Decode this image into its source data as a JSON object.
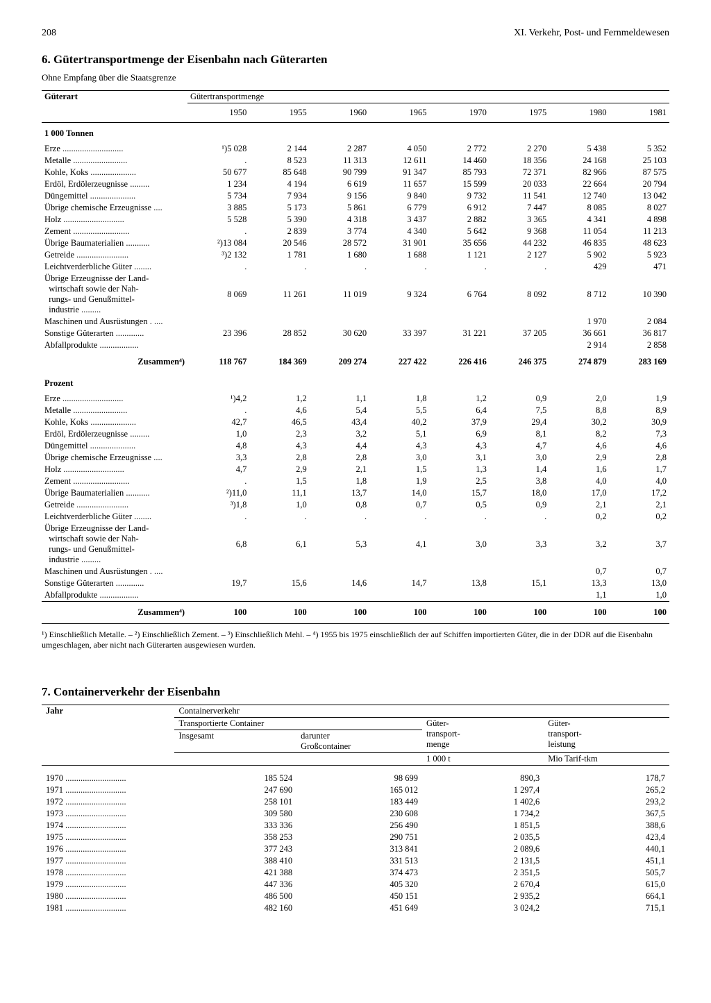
{
  "page_number": "208",
  "chapter_title": "XI. Verkehr, Post- und Fernmeldewesen",
  "section6": {
    "heading": "6. Gütertransportmenge der Eisenbahn nach Güterarten",
    "subtitle": "Ohne Empfang über die Staatsgrenze",
    "col_label": "Güterart",
    "group_label": "Gütertransportmenge",
    "years": [
      "1950",
      "1955",
      "1960",
      "1965",
      "1970",
      "1975",
      "1980",
      "1981"
    ],
    "unit1": "1 000 Tonnen",
    "unit2": "Prozent",
    "rows_t": [
      {
        "l": "Erze",
        "v": [
          "¹)5 028",
          "2 144",
          "2 287",
          "4 050",
          "2 772",
          "2 270",
          "5 438",
          "5 352"
        ]
      },
      {
        "l": "Metalle",
        "v": [
          ".",
          "8 523",
          "11 313",
          "12 611",
          "14 460",
          "18 356",
          "24 168",
          "25 103"
        ]
      },
      {
        "l": "Kohle, Koks",
        "v": [
          "50 677",
          "85 648",
          "90 799",
          "91 347",
          "85 793",
          "72 371",
          "82 966",
          "87 575"
        ]
      },
      {
        "l": "Erdöl, Erdölerzeugnisse",
        "v": [
          "1 234",
          "4 194",
          "6 619",
          "11 657",
          "15 599",
          "20 033",
          "22 664",
          "20 794"
        ]
      },
      {
        "l": "Düngemittel",
        "v": [
          "5 734",
          "7 934",
          "9 156",
          "9 840",
          "9 732",
          "11 541",
          "12 740",
          "13 042"
        ]
      },
      {
        "l": "Übrige chemische Erzeugnisse",
        "v": [
          "3 885",
          "5 173",
          "5 861",
          "6 779",
          "6 912",
          "7 447",
          "8 085",
          "8 027"
        ]
      },
      {
        "l": "Holz",
        "v": [
          "5 528",
          "5 390",
          "4 318",
          "3 437",
          "2 882",
          "3 365",
          "4 341",
          "4 898"
        ]
      },
      {
        "l": "Zement",
        "v": [
          ".",
          "2 839",
          "3 774",
          "4 340",
          "5 642",
          "9 368",
          "11 054",
          "11 213"
        ]
      },
      {
        "l": "Übrige Baumaterialien",
        "v": [
          "²)13 084",
          "20 546",
          "28 572",
          "31 901",
          "35 656",
          "44 232",
          "46 835",
          "48 623"
        ]
      },
      {
        "l": "Getreide",
        "v": [
          "³)2 132",
          "1 781",
          "1 680",
          "1 688",
          "1 121",
          "2 127",
          "5 902",
          "5 923"
        ]
      },
      {
        "l": "Leichtverderbliche Güter",
        "v": [
          ".",
          ".",
          ".",
          ".",
          ".",
          ".",
          "429",
          "471"
        ]
      }
    ],
    "row_agri": {
      "l": "Übrige Erzeugnisse der Land-<br>&nbsp;&nbsp;wirtschaft sowie der Nah-<br>&nbsp;&nbsp;rungs- und Genußmittel-<br>&nbsp;&nbsp;industrie",
      "v": [
        "8 069",
        "11 261",
        "11 019",
        "9 324",
        "6 764",
        "8 092",
        "8 712",
        "10 390"
      ]
    },
    "rows_t2": [
      {
        "l": "Maschinen und Ausrüstungen .",
        "v": [
          "",
          "",
          "",
          "",
          "",
          "",
          "1 970",
          "2 084"
        ]
      },
      {
        "l": "Sonstige Güterarten",
        "v": [
          "23 396",
          "28 852",
          "30 620",
          "33 397",
          "31 221",
          "37 205",
          "36 661",
          "36 817"
        ],
        "brace": true
      },
      {
        "l": "Abfallprodukte",
        "v": [
          "",
          "",
          "",
          "",
          "",
          "",
          "2 914",
          "2 858"
        ]
      }
    ],
    "sum_t": {
      "l": "Zusammen⁴)",
      "v": [
        "118 767",
        "184 369",
        "209 274",
        "227 422",
        "226 416",
        "246 375",
        "274 879",
        "283 169"
      ]
    },
    "rows_p": [
      {
        "l": "Erze",
        "v": [
          "¹)4,2",
          "1,2",
          "1,1",
          "1,8",
          "1,2",
          "0,9",
          "2,0",
          "1,9"
        ]
      },
      {
        "l": "Metalle",
        "v": [
          ".",
          "4,6",
          "5,4",
          "5,5",
          "6,4",
          "7,5",
          "8,8",
          "8,9"
        ]
      },
      {
        "l": "Kohle, Koks",
        "v": [
          "42,7",
          "46,5",
          "43,4",
          "40,2",
          "37,9",
          "29,4",
          "30,2",
          "30,9"
        ]
      },
      {
        "l": "Erdöl, Erdölerzeugnisse",
        "v": [
          "1,0",
          "2,3",
          "3,2",
          "5,1",
          "6,9",
          "8,1",
          "8,2",
          "7,3"
        ]
      },
      {
        "l": "Düngemittel",
        "v": [
          "4,8",
          "4,3",
          "4,4",
          "4,3",
          "4,3",
          "4,7",
          "4,6",
          "4,6"
        ]
      },
      {
        "l": "Übrige chemische Erzeugnisse",
        "v": [
          "3,3",
          "2,8",
          "2,8",
          "3,0",
          "3,1",
          "3,0",
          "2,9",
          "2,8"
        ]
      },
      {
        "l": "Holz",
        "v": [
          "4,7",
          "2,9",
          "2,1",
          "1,5",
          "1,3",
          "1,4",
          "1,6",
          "1,7"
        ]
      },
      {
        "l": "Zement",
        "v": [
          ".",
          "1,5",
          "1,8",
          "1,9",
          "2,5",
          "3,8",
          "4,0",
          "4,0"
        ]
      },
      {
        "l": "Übrige Baumaterialien",
        "v": [
          "²)11,0",
          "11,1",
          "13,7",
          "14,0",
          "15,7",
          "18,0",
          "17,0",
          "17,2"
        ]
      },
      {
        "l": "Getreide",
        "v": [
          "³)1,8",
          "1,0",
          "0,8",
          "0,7",
          "0,5",
          "0,9",
          "2,1",
          "2,1"
        ]
      },
      {
        "l": "Leichtverderbliche Güter",
        "v": [
          ".",
          ".",
          ".",
          ".",
          ".",
          ".",
          "0,2",
          "0,2"
        ]
      }
    ],
    "row_agri_p": {
      "l": "Übrige Erzeugnisse der Land-<br>&nbsp;&nbsp;wirtschaft sowie der Nah-<br>&nbsp;&nbsp;rungs- und Genußmittel-<br>&nbsp;&nbsp;industrie",
      "v": [
        "6,8",
        "6,1",
        "5,3",
        "4,1",
        "3,0",
        "3,3",
        "3,2",
        "3,7"
      ]
    },
    "rows_p2": [
      {
        "l": "Maschinen und Ausrüstungen .",
        "v": [
          "",
          "",
          "",
          "",
          "",
          "",
          "0,7",
          "0,7"
        ]
      },
      {
        "l": "Sonstige Güterarten",
        "v": [
          "19,7",
          "15,6",
          "14,6",
          "14,7",
          "13,8",
          "15,1",
          "13,3",
          "13,0"
        ],
        "brace": true
      },
      {
        "l": "Abfallprodukte",
        "v": [
          "",
          "",
          "",
          "",
          "",
          "",
          "1,1",
          "1,0"
        ]
      }
    ],
    "sum_p": {
      "l": "Zusammen⁴)",
      "v": [
        "100",
        "100",
        "100",
        "100",
        "100",
        "100",
        "100",
        "100"
      ]
    },
    "footnote": "¹) Einschließlich Metalle. – ²) Einschließlich Zement. – ³) Einschließlich Mehl. – ⁴) 1955 bis 1975 einschließlich der auf Schiffen importierten Güter, die in der DDR auf die Eisenbahn umgeschlagen, aber nicht nach Güterarten ausgewiesen wurden."
  },
  "section7": {
    "heading": "7. Containerverkehr der Eisenbahn",
    "col_year": "Jahr",
    "group": "Containerverkehr",
    "sub_trans": "Transportierte Container",
    "sub_menge": "Güter-\ntransport-\nmenge",
    "sub_leist": "Güter-\ntransport-\nleistung",
    "sub_insg": "Insgesamt",
    "sub_gross": "darunter\nGroßcontainer",
    "unit_t": "1 000 t",
    "unit_tkm": "Mio Tarif-tkm",
    "rows": [
      {
        "y": "1970",
        "v": [
          "185 524",
          "98 699",
          "890,3",
          "178,7"
        ]
      },
      {
        "y": "1971",
        "v": [
          "247 690",
          "165 012",
          "1 297,4",
          "265,2"
        ]
      },
      {
        "y": "1972",
        "v": [
          "258 101",
          "183 449",
          "1 402,6",
          "293,2"
        ]
      },
      {
        "y": "1973",
        "v": [
          "309 580",
          "230 608",
          "1 734,2",
          "367,5"
        ]
      },
      {
        "y": "1974",
        "v": [
          "333 336",
          "256 490",
          "1 851,5",
          "388,6"
        ]
      },
      {
        "y": "1975",
        "v": [
          "358 253",
          "290 751",
          "2 035,5",
          "423,4"
        ]
      },
      {
        "y": "1976",
        "v": [
          "377 243",
          "313 841",
          "2 089,6",
          "440,1"
        ]
      },
      {
        "y": "1977",
        "v": [
          "388 410",
          "331 513",
          "2 131,5",
          "451,1"
        ]
      },
      {
        "y": "1978",
        "v": [
          "421 388",
          "374 473",
          "2 351,5",
          "505,7"
        ]
      },
      {
        "y": "1979",
        "v": [
          "447 336",
          "405 320",
          "2 670,4",
          "615,0"
        ]
      },
      {
        "y": "1980",
        "v": [
          "486 500",
          "450 151",
          "2 935,2",
          "664,1"
        ]
      },
      {
        "y": "1981",
        "v": [
          "482 160",
          "451 649",
          "3 024,2",
          "715,1"
        ]
      }
    ]
  }
}
